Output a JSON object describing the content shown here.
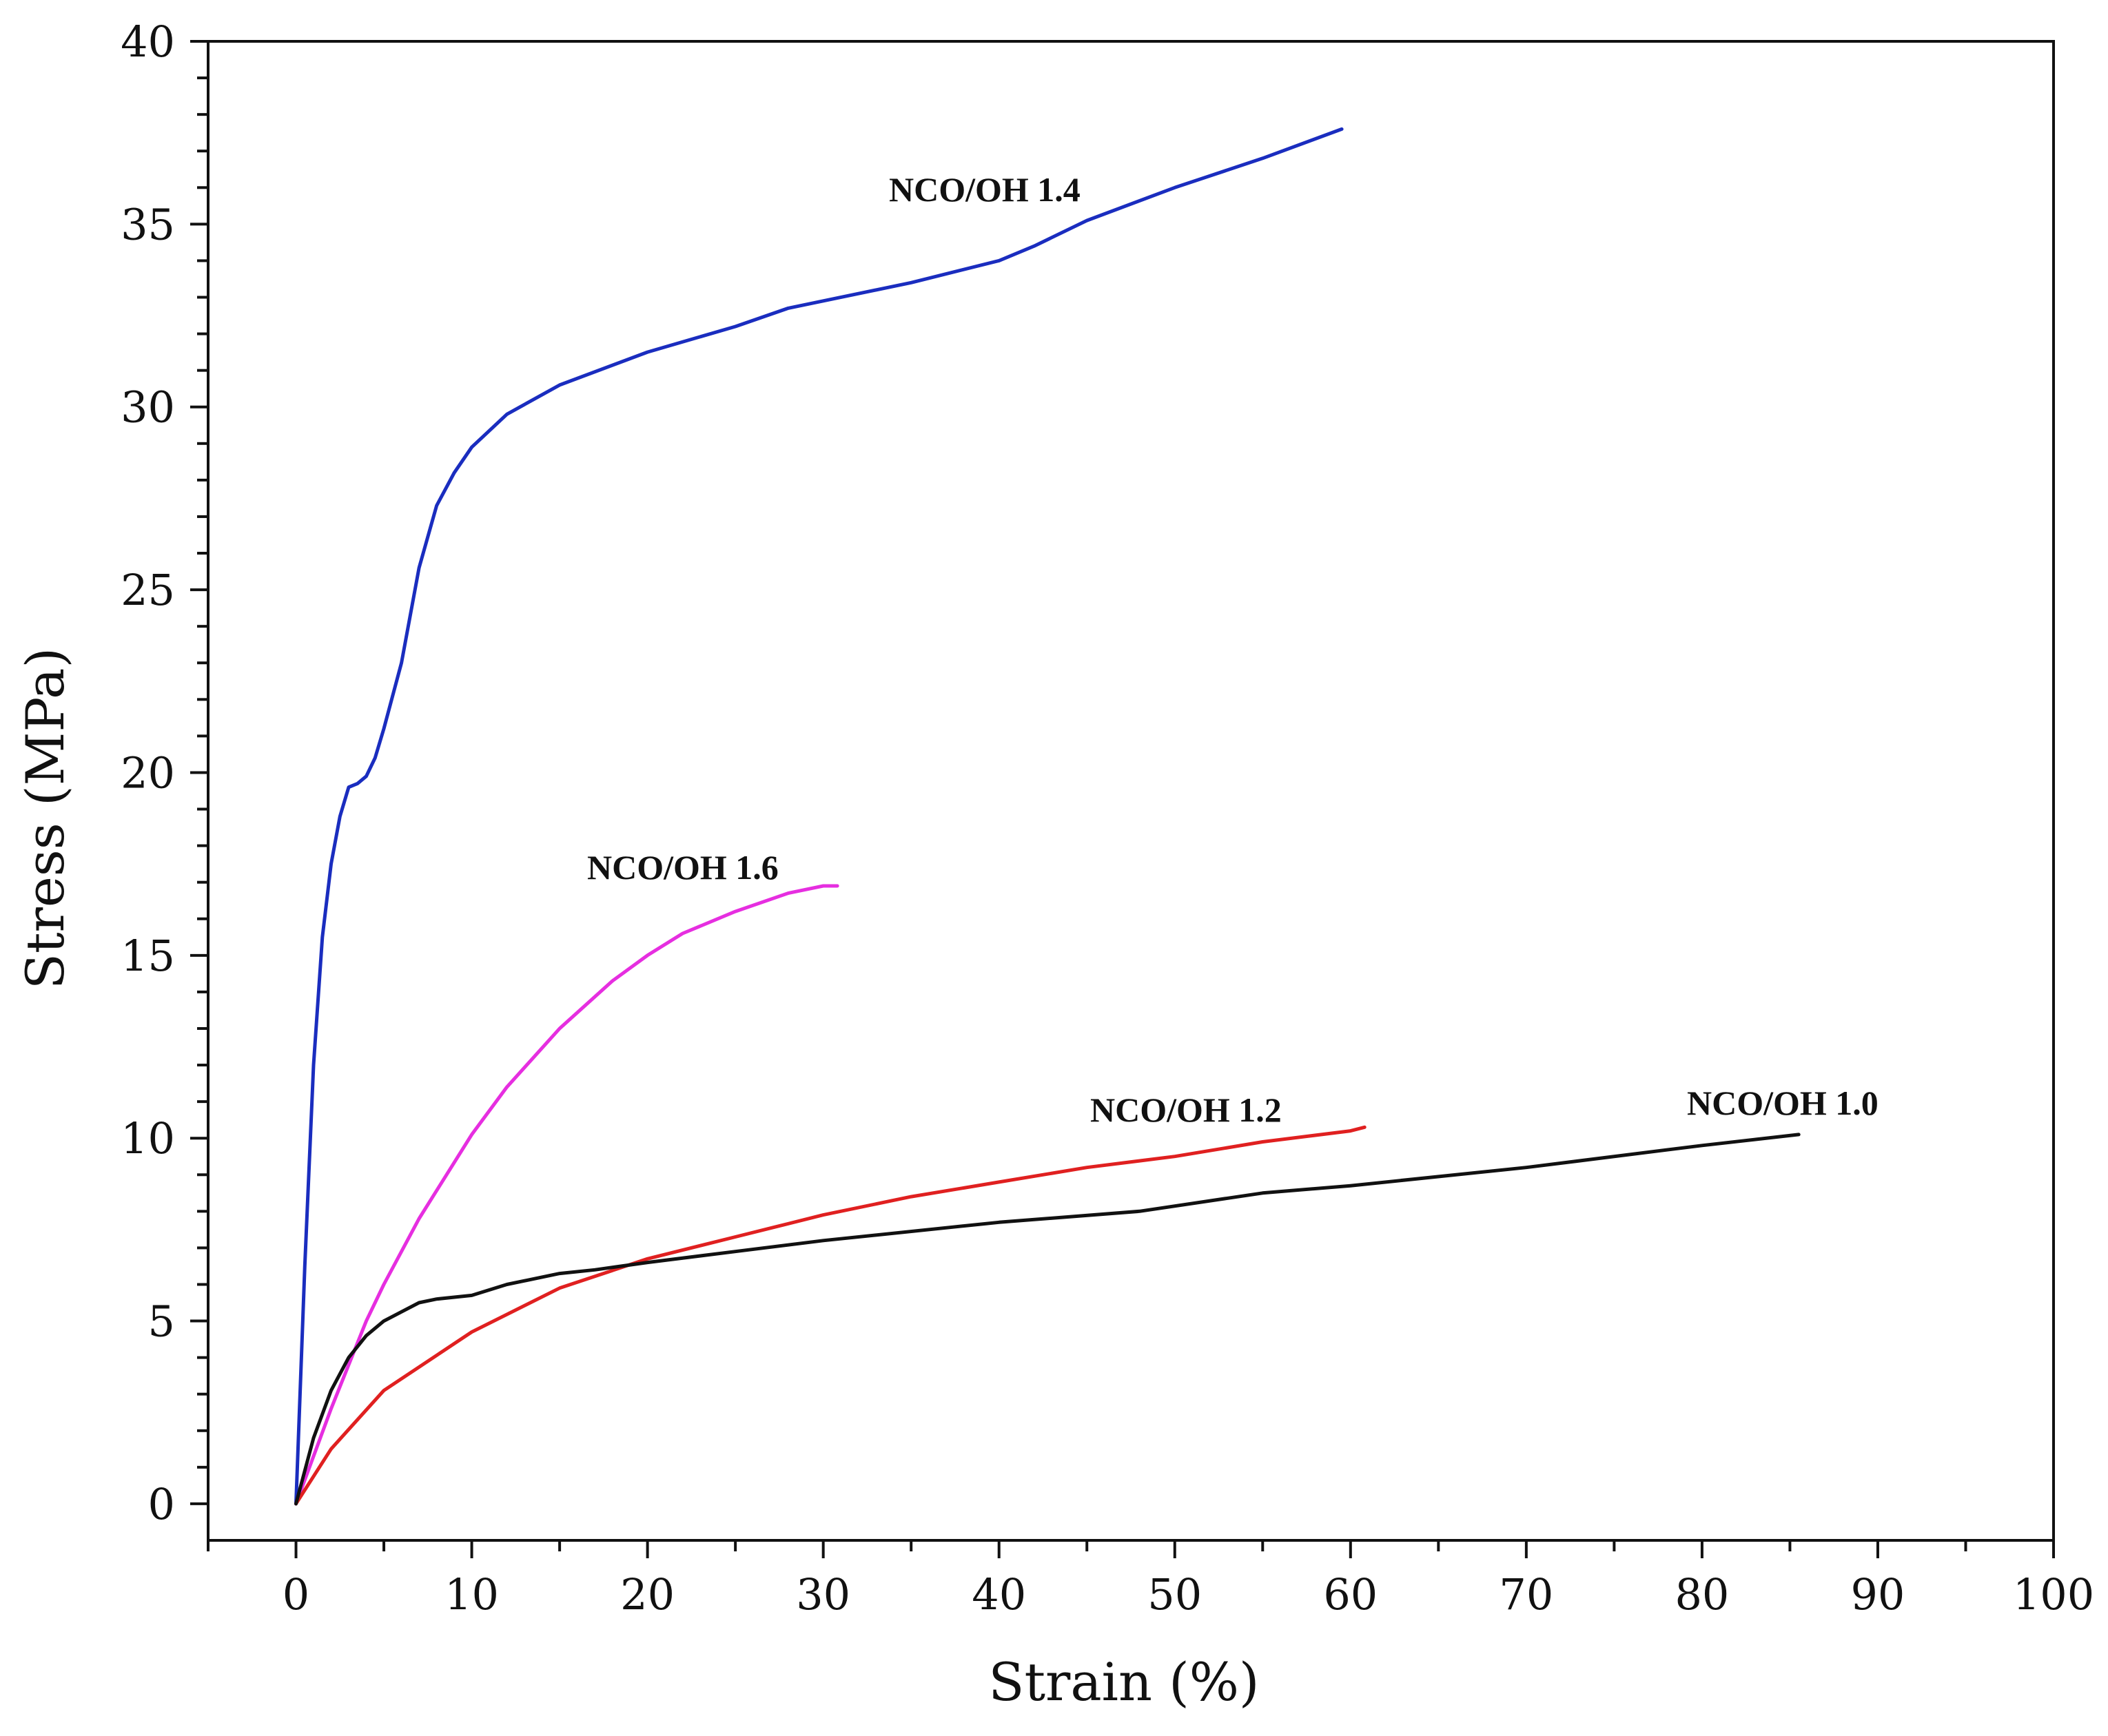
{
  "chart_data": {
    "type": "line",
    "title": "",
    "xlabel": "Strain (%)",
    "ylabel": "Stress (MPa)",
    "xlim": [
      -5,
      100
    ],
    "ylim": [
      -1,
      40
    ],
    "x_ticks": [
      0,
      10,
      20,
      30,
      40,
      50,
      60,
      70,
      80,
      90,
      100
    ],
    "y_ticks": [
      0,
      5,
      10,
      15,
      20,
      25,
      30,
      35,
      40
    ],
    "grid": false,
    "legend": "none (series labelled directly on the plot)",
    "series": [
      {
        "name": "NCO/OH 1.4",
        "color": "#1a2dbf",
        "x": [
          0,
          0.5,
          1,
          1.5,
          2,
          2.5,
          3,
          3.5,
          4,
          4.5,
          5,
          6,
          7,
          8,
          9,
          10,
          12,
          15,
          20,
          25,
          28,
          30,
          35,
          40,
          42,
          45,
          50,
          55,
          59.5
        ],
        "y": [
          0,
          6.5,
          12,
          15.5,
          17.5,
          18.8,
          19.6,
          19.7,
          19.9,
          20.4,
          21.2,
          23,
          25.6,
          27.3,
          28.2,
          28.9,
          29.8,
          30.6,
          31.5,
          32.2,
          32.7,
          32.9,
          33.4,
          34.0,
          34.4,
          35.1,
          36.0,
          36.8,
          37.6
        ]
      },
      {
        "name": "NCO/OH 1.6",
        "color": "#e62ee0",
        "x": [
          0,
          1,
          2,
          3,
          4,
          5,
          7,
          10,
          12,
          15,
          18,
          20,
          22,
          25,
          28,
          30,
          30.8
        ],
        "y": [
          0,
          1.3,
          2.6,
          3.8,
          5.0,
          6.0,
          7.8,
          10.1,
          11.4,
          13.0,
          14.3,
          15.0,
          15.6,
          16.2,
          16.7,
          16.9,
          16.9
        ]
      },
      {
        "name": "NCO/OH 1.2",
        "color": "#e02020",
        "x": [
          0,
          2,
          5,
          10,
          15,
          20,
          25,
          30,
          35,
          40,
          45,
          50,
          55,
          60,
          60.8
        ],
        "y": [
          0,
          1.5,
          3.1,
          4.7,
          5.9,
          6.7,
          7.3,
          7.9,
          8.4,
          8.8,
          9.2,
          9.5,
          9.9,
          10.2,
          10.3
        ]
      },
      {
        "name": "NCO/OH 1.0",
        "color": "#111111",
        "x": [
          0,
          1,
          2,
          3,
          4,
          5,
          7,
          8,
          10,
          12,
          15,
          17,
          20,
          25,
          30,
          40,
          48,
          55,
          60,
          70,
          80,
          85.5
        ],
        "y": [
          0,
          1.8,
          3.1,
          4.0,
          4.6,
          5.0,
          5.5,
          5.6,
          5.7,
          6.0,
          6.3,
          6.4,
          6.6,
          6.9,
          7.2,
          7.7,
          8.0,
          8.5,
          8.7,
          9.2,
          9.8,
          10.1
        ]
      }
    ]
  }
}
